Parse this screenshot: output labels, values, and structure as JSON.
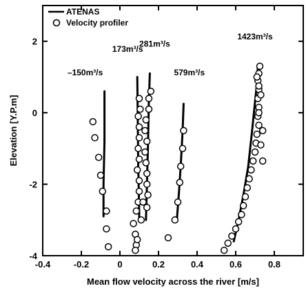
{
  "chart_data": {
    "type": "line",
    "xlabel": "Mean flow velocity across the river [m/s]",
    "ylabel": "Elevation [Y.P.m]",
    "xlim": [
      -0.4,
      0.95
    ],
    "ylim": [
      -4,
      3
    ],
    "x_ticks": [
      -0.4,
      -0.2,
      0,
      0.2,
      0.4,
      0.6,
      0.8
    ],
    "x_tick_labels": [
      "-0.4",
      "-0.2",
      "0",
      "0.2",
      "0.4",
      "0.6",
      "0.8"
    ],
    "y_ticks": [
      -4,
      -2,
      0,
      2
    ],
    "y_tick_labels": [
      "-4",
      "-2",
      "0",
      "2"
    ],
    "grid": false,
    "legend": {
      "position": "top-left",
      "entries": [
        {
          "label": "ATENAS",
          "marker": "line"
        },
        {
          "label": "Velocity profiler",
          "marker": "open-circle"
        }
      ]
    },
    "annotations": [
      {
        "text": "–150m³/s",
        "x": -0.18,
        "y": 1.05
      },
      {
        "text": "173m³/s",
        "x": 0.04,
        "y": 1.7
      },
      {
        "text": "281m³/s",
        "x": 0.18,
        "y": 1.85
      },
      {
        "text": "579m³/s",
        "x": 0.36,
        "y": 1.05
      },
      {
        "text": "1423m³/s",
        "x": 0.7,
        "y": 2.05
      }
    ],
    "series": [
      {
        "name": "ATENAS",
        "type": "line",
        "segments": [
          [
            [
              -0.08,
              0.6
            ],
            [
              -0.08,
              -0.8
            ],
            [
              -0.085,
              -2.0
            ],
            [
              -0.085,
              -2.9
            ]
          ],
          [
            [
              0.09,
              1.0
            ],
            [
              0.092,
              0.0
            ],
            [
              0.095,
              -1.5
            ],
            [
              0.1,
              -2.8
            ],
            [
              0.1,
              -3.0
            ]
          ],
          [
            [
              0.155,
              1.1
            ],
            [
              0.15,
              0.3
            ],
            [
              0.145,
              -1.0
            ],
            [
              0.14,
              -2.0
            ],
            [
              0.135,
              -3.0
            ]
          ],
          [
            [
              0.33,
              0.25
            ],
            [
              0.325,
              -0.5
            ],
            [
              0.315,
              -1.5
            ],
            [
              0.305,
              -2.3
            ],
            [
              0.295,
              -3.0
            ]
          ],
          [
            [
              0.59,
              -3.6
            ],
            [
              0.615,
              -3.0
            ],
            [
              0.64,
              -2.3
            ],
            [
              0.665,
              -1.5
            ],
            [
              0.685,
              -0.5
            ],
            [
              0.7,
              0.3
            ],
            [
              0.71,
              0.8
            ],
            [
              0.715,
              1.3
            ]
          ]
        ]
      },
      {
        "name": "Velocity profiler",
        "type": "scatter",
        "marker": "open-circle",
        "points": [
          [
            -0.14,
            -0.25
          ],
          [
            -0.13,
            -0.7
          ],
          [
            -0.11,
            -1.25
          ],
          [
            -0.1,
            -1.75
          ],
          [
            -0.09,
            -2.2
          ],
          [
            -0.07,
            -2.75
          ],
          [
            -0.07,
            -3.25
          ],
          [
            -0.06,
            -3.75
          ],
          [
            0.07,
            -3.1
          ],
          [
            0.08,
            -3.4
          ],
          [
            0.085,
            -3.7
          ],
          [
            0.08,
            -3.85
          ],
          [
            0.09,
            -3.55
          ],
          [
            0.085,
            -2.75
          ],
          [
            0.095,
            -2.5
          ],
          [
            0.1,
            -2.2
          ],
          [
            0.1,
            -1.9
          ],
          [
            0.09,
            -1.6
          ],
          [
            0.1,
            -1.3
          ],
          [
            0.095,
            -1.0
          ],
          [
            0.1,
            -0.7
          ],
          [
            0.1,
            -0.4
          ],
          [
            0.095,
            -0.1
          ],
          [
            0.105,
            0.1
          ],
          [
            0.1,
            0.4
          ],
          [
            0.11,
            -3.0
          ],
          [
            0.12,
            -2.5
          ],
          [
            0.135,
            -0.2
          ],
          [
            0.13,
            -0.5
          ],
          [
            0.14,
            -0.8
          ],
          [
            0.13,
            -1.1
          ],
          [
            0.135,
            -1.4
          ],
          [
            0.14,
            -1.7
          ],
          [
            0.14,
            -2.0
          ],
          [
            0.145,
            -2.3
          ],
          [
            0.14,
            -2.65
          ],
          [
            0.15,
            0.1
          ],
          [
            0.15,
            0.4
          ],
          [
            0.16,
            0.6
          ],
          [
            0.33,
            -0.5
          ],
          [
            0.325,
            -1.0
          ],
          [
            0.315,
            -1.5
          ],
          [
            0.31,
            -1.95
          ],
          [
            0.3,
            -2.5
          ],
          [
            0.285,
            -3.0
          ],
          [
            0.25,
            -3.5
          ],
          [
            0.54,
            -3.85
          ],
          [
            0.56,
            -3.65
          ],
          [
            0.58,
            -3.45
          ],
          [
            0.6,
            -3.25
          ],
          [
            0.615,
            -3.05
          ],
          [
            0.63,
            -2.85
          ],
          [
            0.64,
            -2.6
          ],
          [
            0.65,
            -2.35
          ],
          [
            0.66,
            -2.1
          ],
          [
            0.67,
            -1.85
          ],
          [
            0.68,
            -1.6
          ],
          [
            0.69,
            -1.35
          ],
          [
            0.7,
            -1.1
          ],
          [
            0.705,
            -0.85
          ],
          [
            0.71,
            -0.6
          ],
          [
            0.72,
            -0.35
          ],
          [
            0.715,
            -0.1
          ],
          [
            0.72,
            0.15
          ],
          [
            0.715,
            0.4
          ],
          [
            0.72,
            0.65
          ],
          [
            0.715,
            0.9
          ],
          [
            0.72,
            1.1
          ],
          [
            0.725,
            1.3
          ],
          [
            0.74,
            -1.35
          ],
          [
            0.73,
            -0.9
          ],
          [
            0.74,
            -0.5
          ],
          [
            0.72,
            0.0
          ],
          [
            0.73,
            0.5
          ],
          [
            0.72,
            0.75
          ],
          [
            0.71,
            1.0
          ]
        ]
      }
    ]
  }
}
